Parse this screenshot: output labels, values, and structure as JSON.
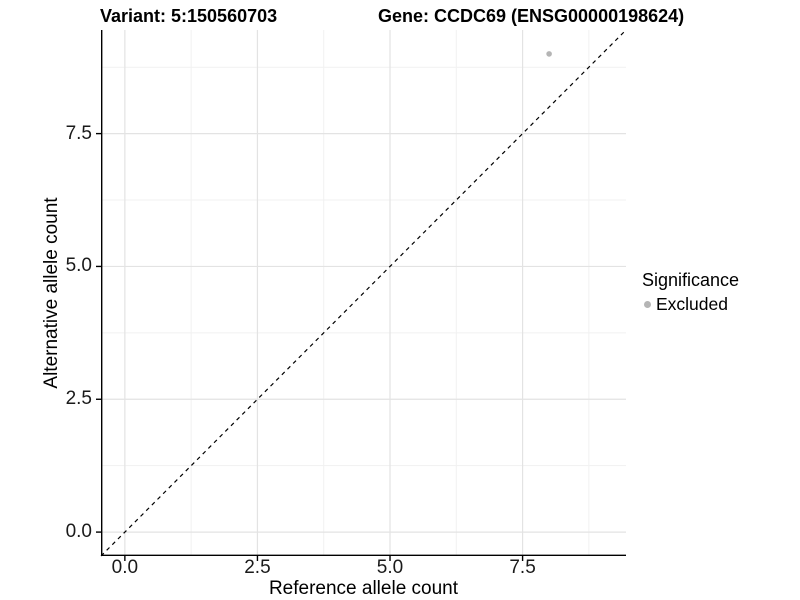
{
  "titles": {
    "variant": "Variant: 5:150560703",
    "gene": "Gene: CCDC69 (ENSG00000198624)"
  },
  "axes": {
    "x_label": "Reference allele count",
    "y_label": "Alternative allele count"
  },
  "legend": {
    "title": "Significance",
    "items": [
      {
        "label": "Excluded",
        "color": "#b5b5b5"
      }
    ]
  },
  "colors": {
    "background": "#ffffff",
    "grid_major": "#e3e3e3",
    "grid_minor": "#f1f1f1",
    "axis_line": "#000000",
    "tick_text": "#1a1a1a",
    "point": "#b5b5b5",
    "reference_line": "#000000"
  },
  "chart_data": {
    "type": "scatter",
    "title_left": "Variant: 5:150560703",
    "title_right": "Gene: CCDC69 (ENSG00000198624)",
    "xlabel": "Reference allele count",
    "ylabel": "Alternative allele count",
    "xlim": [
      -0.45,
      9.45
    ],
    "ylim": [
      -0.45,
      9.45
    ],
    "x_ticks": [
      0,
      2.5,
      5,
      7.5
    ],
    "y_ticks": [
      0,
      2.5,
      5,
      7.5
    ],
    "x_minor_ticks": [
      1.25,
      3.75,
      6.25,
      8.75
    ],
    "y_minor_ticks": [
      1.25,
      3.75,
      6.25,
      8.75
    ],
    "tick_decimals": 1,
    "grid": true,
    "legend_position": "right",
    "series": [
      {
        "name": "Excluded",
        "color": "#b5b5b5",
        "points": [
          {
            "x": 8,
            "y": 9
          }
        ]
      }
    ],
    "reference_line": {
      "kind": "identity",
      "slope": 1,
      "intercept": 0,
      "style": "dashed",
      "color": "#000000"
    }
  }
}
